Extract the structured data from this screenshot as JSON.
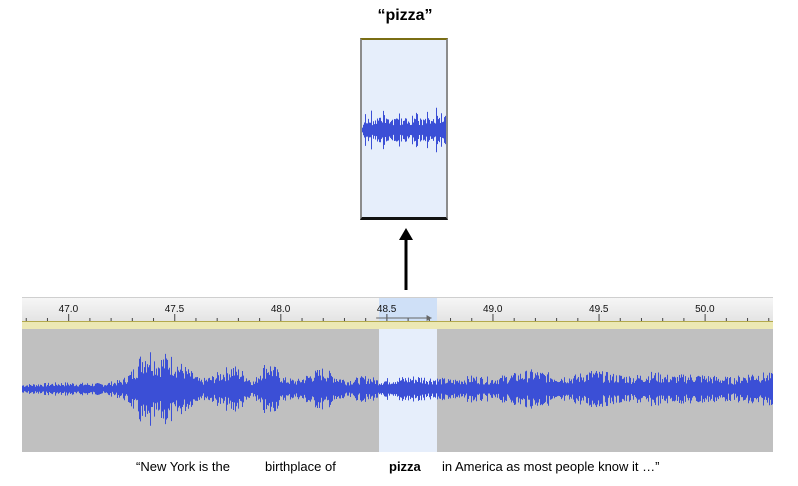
{
  "zoom": {
    "title": "“pizza”"
  },
  "ruler": {
    "ticks": [
      "47.0",
      "47.5",
      "48.0",
      "48.5",
      "49.0",
      "49.5",
      "50.0"
    ],
    "tick_values": [
      47.0,
      47.5,
      48.0,
      48.5,
      49.0,
      49.5,
      50.0
    ],
    "visible_range": [
      46.78,
      50.32
    ],
    "selection": [
      48.44,
      48.72
    ]
  },
  "transcript": {
    "part1": "“New York is the",
    "part2": "birthplace of",
    "highlight": "pizza",
    "part3": "in America as most people know it …”"
  },
  "colors": {
    "waveform": "#3b4fd6",
    "selection": "#e6eefb",
    "track_bg": "#c0c0c0"
  },
  "icons": {
    "arrow": "up-arrow-icon"
  }
}
